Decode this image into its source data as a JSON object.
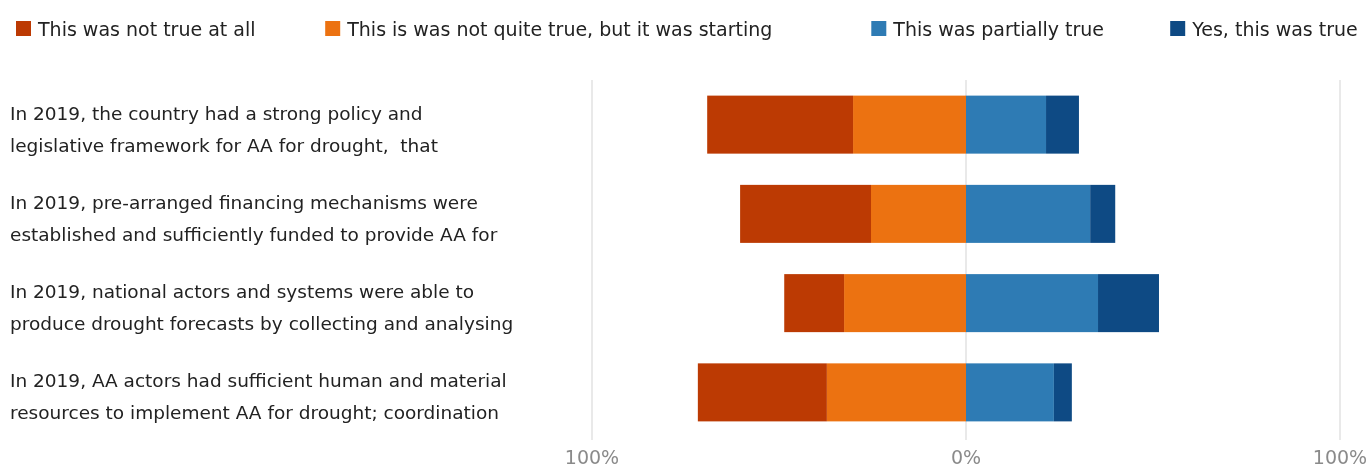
{
  "chart_data": {
    "type": "bar",
    "orientation": "horizontal",
    "stacked": true,
    "categories": [
      "In 2019, the country had a strong policy and\nlegislative framework for AA for drought,  that",
      "In 2019, pre-arranged financing mechanisms were\nestablished and sufficiently funded to provide AA for",
      "In 2019, national actors and systems were able to\nproduce drought forecasts by collecting and analysing",
      "In 2019, AA actors had sufficient human and material\nresources to implement AA for drought; coordination"
    ],
    "series": [
      {
        "name": "This is was not quite true, but it was starting",
        "color": "#ec7211",
        "values": [
          -30.2,
          -25.4,
          -32.6,
          -37.2
        ]
      },
      {
        "name": "This was not true at all",
        "color": "#bc3a03",
        "values": [
          -39.0,
          -35.0,
          -16.0,
          -34.5
        ]
      },
      {
        "name": "This was partially true",
        "color": "#2e7bb4",
        "values": [
          21.4,
          33.2,
          35.3,
          23.5
        ]
      },
      {
        "name": "Yes, this was true",
        "color": "#0e4a84",
        "values": [
          8.8,
          6.7,
          16.3,
          4.8
        ]
      }
    ],
    "xlim": [
      -100,
      100
    ],
    "xticks": [
      {
        "value": -100,
        "label": "100%"
      },
      {
        "value": 0,
        "label": "0%"
      },
      {
        "value": 100,
        "label": "100%"
      }
    ],
    "grid": "x",
    "legend": "top"
  }
}
